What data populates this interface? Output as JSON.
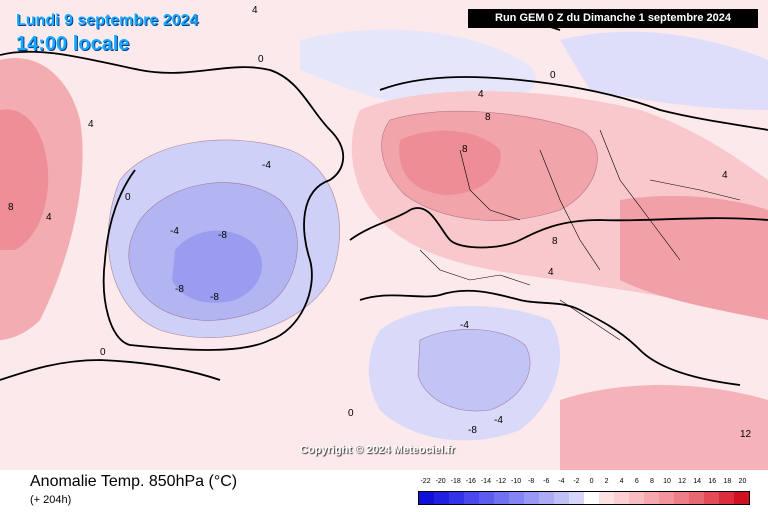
{
  "header": {
    "date": "Lundi 9 septembre 2024",
    "time": "14:00 locale",
    "run": "Run GEM 0 Z du Dimanche 1 septembre 2024"
  },
  "footer": {
    "title": "Anomalie Temp. 850hPa (°C)",
    "subtitle": "(+ 204h)"
  },
  "copyright": "Copyright © 2024 Meteociel.fr",
  "legend": {
    "labels": [
      "-22",
      "-20",
      "-18",
      "-16",
      "-14",
      "-12",
      "-10",
      "-8",
      "-6",
      "-4",
      "-2",
      "0",
      "2",
      "4",
      "6",
      "8",
      "10",
      "12",
      "14",
      "16",
      "18",
      "20"
    ],
    "colors": [
      "#1010d8",
      "#2020e0",
      "#3333e8",
      "#4848ee",
      "#5c5cf0",
      "#7070f2",
      "#8484f4",
      "#9898f5",
      "#acacf6",
      "#c0c0f8",
      "#d6d6fa",
      "#ffffff",
      "#fde2e4",
      "#fbcfd3",
      "#f8bcc1",
      "#f5a8ae",
      "#f2949b",
      "#ee7f87",
      "#e86771",
      "#e24b57",
      "#dc2d3c",
      "#d11020"
    ]
  },
  "map_labels": [
    {
      "text": "4"
    },
    {
      "text": "0"
    },
    {
      "text": "4"
    },
    {
      "text": "8"
    },
    {
      "text": "0"
    },
    {
      "text": "-4"
    },
    {
      "text": "-8"
    },
    {
      "text": "-8"
    },
    {
      "text": "-8"
    },
    {
      "text": "-4"
    },
    {
      "text": "0"
    },
    {
      "text": "4"
    },
    {
      "text": "8"
    },
    {
      "text": "8"
    },
    {
      "text": "4"
    },
    {
      "text": "0"
    },
    {
      "text": "-4"
    },
    {
      "text": "-4"
    },
    {
      "text": "-8"
    },
    {
      "text": "4"
    },
    {
      "text": "0"
    },
    {
      "text": "4"
    },
    {
      "text": "8"
    },
    {
      "text": "12"
    }
  ]
}
